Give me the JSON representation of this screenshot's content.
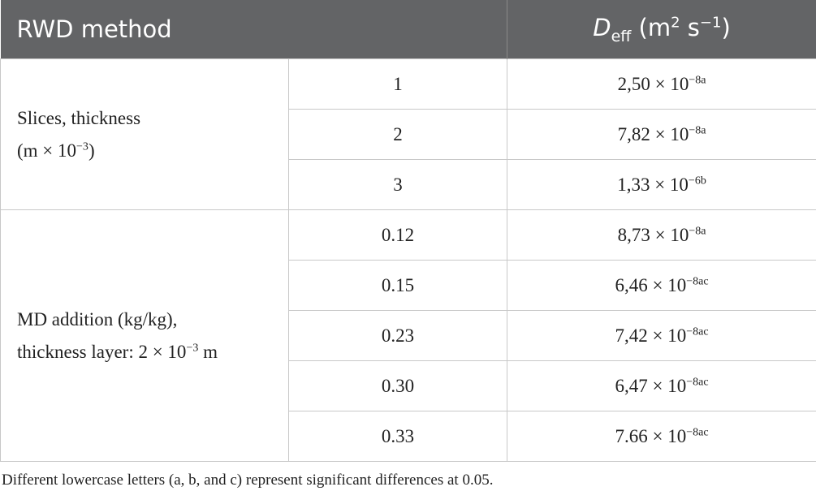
{
  "table": {
    "header": {
      "method": "RWD method",
      "deff": {
        "symbol": "D",
        "subscript": "eff",
        "unit": " (m",
        "unit_power": "2",
        "unit_rest": " s",
        "unit_rest_power": "−1",
        "close": ")"
      }
    },
    "groups": [
      {
        "label": {
          "line1": "Slices, thickness",
          "line2": "(m × 10",
          "line2_power": "−3",
          "line2_end": ")"
        },
        "rows": [
          {
            "level": "1",
            "deff": {
              "base": "2,50 × 10",
              "power": "−8a"
            }
          },
          {
            "level": "2",
            "deff": {
              "base": "7,82 × 10",
              "power": "−8a"
            }
          },
          {
            "level": "3",
            "deff": {
              "base": "1,33 × 10",
              "power": "−6b"
            }
          }
        ]
      },
      {
        "label": {
          "line1": "MD addition (kg/kg),",
          "line2": "thickness layer: 2 × 10",
          "line2_power": "−3",
          "line2_end": " m"
        },
        "rows": [
          {
            "level": "0.12",
            "deff": {
              "base": "8,73 × 10",
              "power": "−8a"
            }
          },
          {
            "level": "0.15",
            "deff": {
              "base": "6,46 × 10",
              "power": "−8ac"
            }
          },
          {
            "level": "0.23",
            "deff": {
              "base": "7,42 × 10",
              "power": "−8ac"
            }
          },
          {
            "level": "0.30",
            "deff": {
              "base": "6,47 × 10",
              "power": "−8ac"
            }
          },
          {
            "level": "0.33",
            "deff": {
              "base": "7.66 × 10",
              "power": "−8ac"
            }
          }
        ]
      }
    ]
  },
  "footnote": "Different lowercase letters (a, b, and c) represent significant differences at 0.05."
}
